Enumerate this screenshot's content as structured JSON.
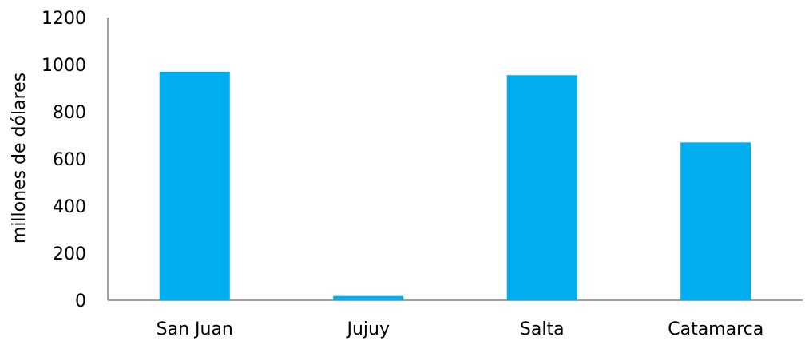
{
  "chart_data": {
    "type": "bar",
    "categories": [
      "San Juan",
      "Jujuy",
      "Salta",
      "Catamarca"
    ],
    "values": [
      970,
      18,
      955,
      670
    ],
    "title": "",
    "xlabel": "",
    "ylabel": "millones de dólares",
    "ylim": [
      0,
      1200
    ],
    "yticks": [
      "0",
      "200",
      "400",
      "600",
      "800",
      "1000",
      "1200"
    ],
    "grid": false,
    "legend": "none",
    "bar_color": "#00AEEF"
  }
}
